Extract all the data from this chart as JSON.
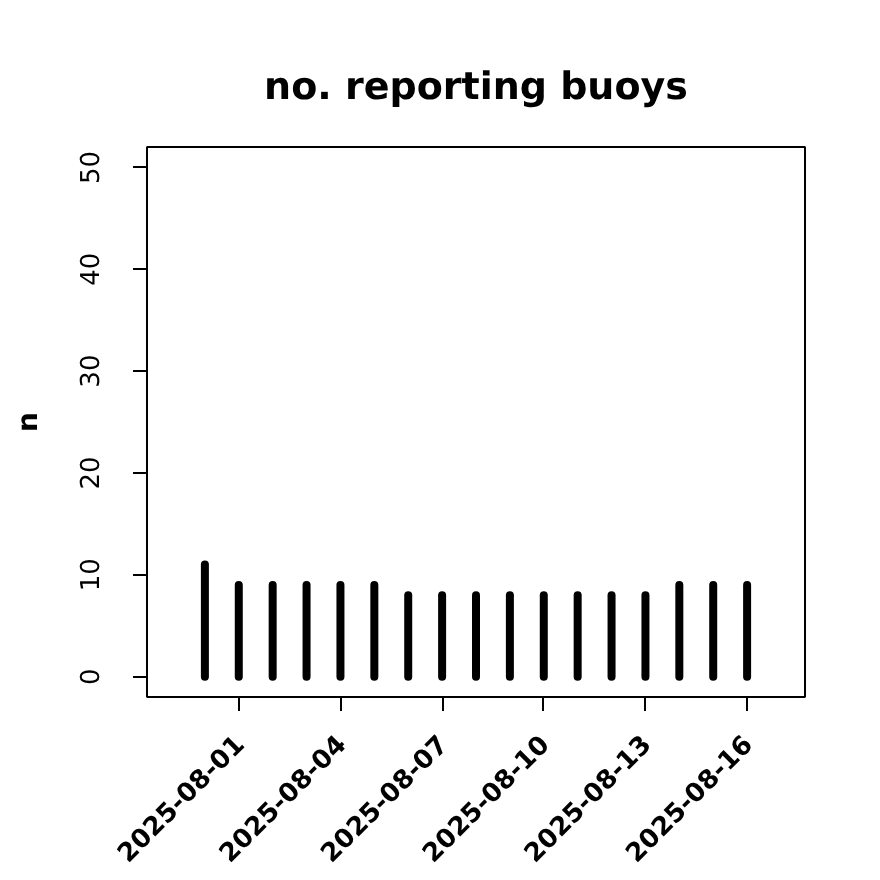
{
  "chart_data": {
    "type": "bar",
    "title": "no. reporting buoys",
    "ylabel": "n",
    "x": [
      "2025-07-31",
      "2025-08-01",
      "2025-08-02",
      "2025-08-03",
      "2025-08-04",
      "2025-08-05",
      "2025-08-06",
      "2025-08-07",
      "2025-08-08",
      "2025-08-09",
      "2025-08-10",
      "2025-08-11",
      "2025-08-12",
      "2025-08-13",
      "2025-08-14",
      "2025-08-15",
      "2025-08-16"
    ],
    "values": [
      11,
      9,
      9,
      9,
      9,
      9,
      8,
      8,
      8,
      8,
      8,
      8,
      8,
      8,
      9,
      9,
      9
    ],
    "color": "#000000",
    "xlim": [
      "2025-07-29T07:00",
      "2025-08-17T17:00"
    ],
    "xticks": [
      "2025-08-01",
      "2025-08-04",
      "2025-08-07",
      "2025-08-10",
      "2025-08-13",
      "2025-08-16"
    ],
    "ylim": [
      -2,
      52
    ],
    "yticks": [
      0,
      10,
      20,
      30,
      40,
      50
    ]
  }
}
